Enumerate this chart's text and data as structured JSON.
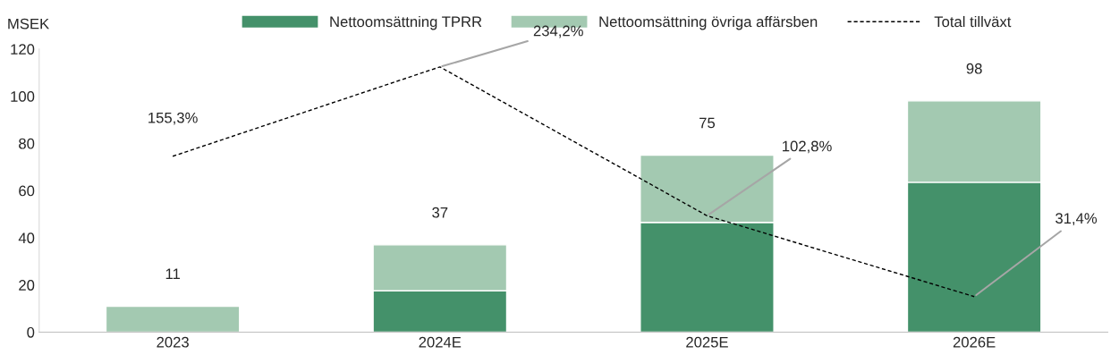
{
  "chart_data": {
    "type": "bar",
    "ylabel": "MSEK",
    "categories": [
      "2023",
      "2024E",
      "2025E",
      "2026E"
    ],
    "stacked": true,
    "series": [
      {
        "name": "Nettoomsättning TPRR",
        "color": "#44916a",
        "values": [
          0,
          17.5,
          46.5,
          63.5
        ]
      },
      {
        "name": "Nettoomsättning övriga affärsben",
        "color": "#a3c9b1",
        "values": [
          11,
          19.5,
          28.5,
          34.5
        ]
      },
      {
        "name": "Total tillväxt",
        "type": "line",
        "axis": "y2",
        "color": "#000000",
        "line_style": "dashed",
        "marker": "none",
        "values": [
          155.3,
          234.2,
          102.8,
          31.4
        ],
        "value_labels": [
          "155,3%",
          "234,2%",
          "102,8%",
          "31,4%"
        ]
      }
    ],
    "totals": [
      "11",
      "37",
      "75",
      "98"
    ],
    "ylim": [
      0,
      120
    ],
    "yticks": [
      0,
      20,
      40,
      60,
      80,
      100,
      120
    ],
    "y2lim": [
      0,
      250
    ],
    "grid": false,
    "legend": "top"
  }
}
